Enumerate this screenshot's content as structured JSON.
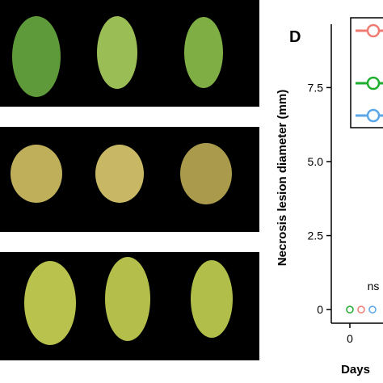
{
  "panel_label": "D",
  "chart_data": {
    "type": "line",
    "ylabel": "Necrosis lesion diameter (mm)",
    "xlabel": "Days",
    "x": [
      0
    ],
    "xticks": [
      0
    ],
    "ylim": [
      -0.46,
      9.64
    ],
    "yticks": [
      0,
      2.5,
      {
        "value": 5,
        "label": "5.0"
      },
      7.5
    ],
    "annotation": "ns",
    "series": [
      {
        "color": "#f07b72",
        "values": [
          0
        ]
      },
      {
        "color": "#1fae2e",
        "values": [
          0
        ]
      },
      {
        "color": "#5aa6e6",
        "values": [
          0
        ]
      }
    ]
  }
}
